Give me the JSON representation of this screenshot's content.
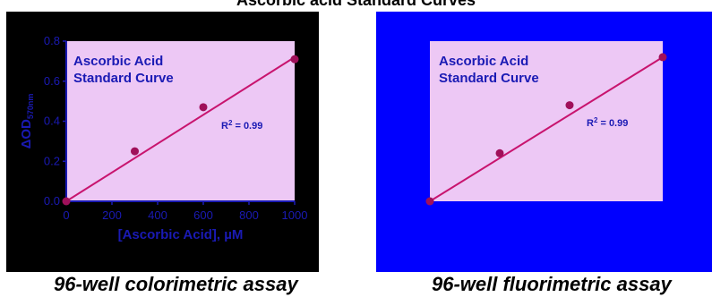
{
  "title": "Ascorbic acid Standard Curves",
  "colors": {
    "left_background": "#000000",
    "right_background": "#0000ff",
    "plot_fill": "#edc8f5",
    "line": "#c8146e",
    "axis": "#1a1ab4",
    "text_blue": "#1a1ab4",
    "point": "#a0105a"
  },
  "captions": [
    "96-well colorimetric assay",
    "96-well fluorimetric assay"
  ],
  "chart_data": [
    {
      "type": "scatter",
      "title": "Ascorbic Acid Standard Curve",
      "xlabel": "[Ascorbic Acid], µM",
      "ylabel": "ΔOD570nm",
      "xlim": [
        0,
        1000
      ],
      "ylim": [
        0,
        0.8
      ],
      "xticks": [
        "0",
        "200",
        "400",
        "600",
        "800",
        "1000"
      ],
      "yticks": [
        "0.0",
        "0.2",
        "0.4",
        "0.6",
        "0.8"
      ],
      "annotation": "R2 = 0.99",
      "points": [
        {
          "x": 0,
          "y": 0.0
        },
        {
          "x": 300,
          "y": 0.25
        },
        {
          "x": 600,
          "y": 0.47
        },
        {
          "x": 1000,
          "y": 0.71
        }
      ],
      "fit": {
        "x": [
          0,
          1000
        ],
        "y": [
          0.0,
          0.72
        ]
      },
      "grid": false
    },
    {
      "type": "scatter",
      "title": "Ascorbic Acid Standard Curve",
      "xlabel": "",
      "ylabel": "",
      "xlim": [
        0,
        1000
      ],
      "ylim": [
        0,
        0.8
      ],
      "annotation": "R2 = 0.99",
      "points": [
        {
          "x": 0,
          "y": 0.0
        },
        {
          "x": 300,
          "y": 0.24
        },
        {
          "x": 600,
          "y": 0.48
        },
        {
          "x": 1000,
          "y": 0.72
        }
      ],
      "fit": {
        "x": [
          0,
          1000
        ],
        "y": [
          0.0,
          0.72
        ]
      },
      "grid": false
    }
  ]
}
